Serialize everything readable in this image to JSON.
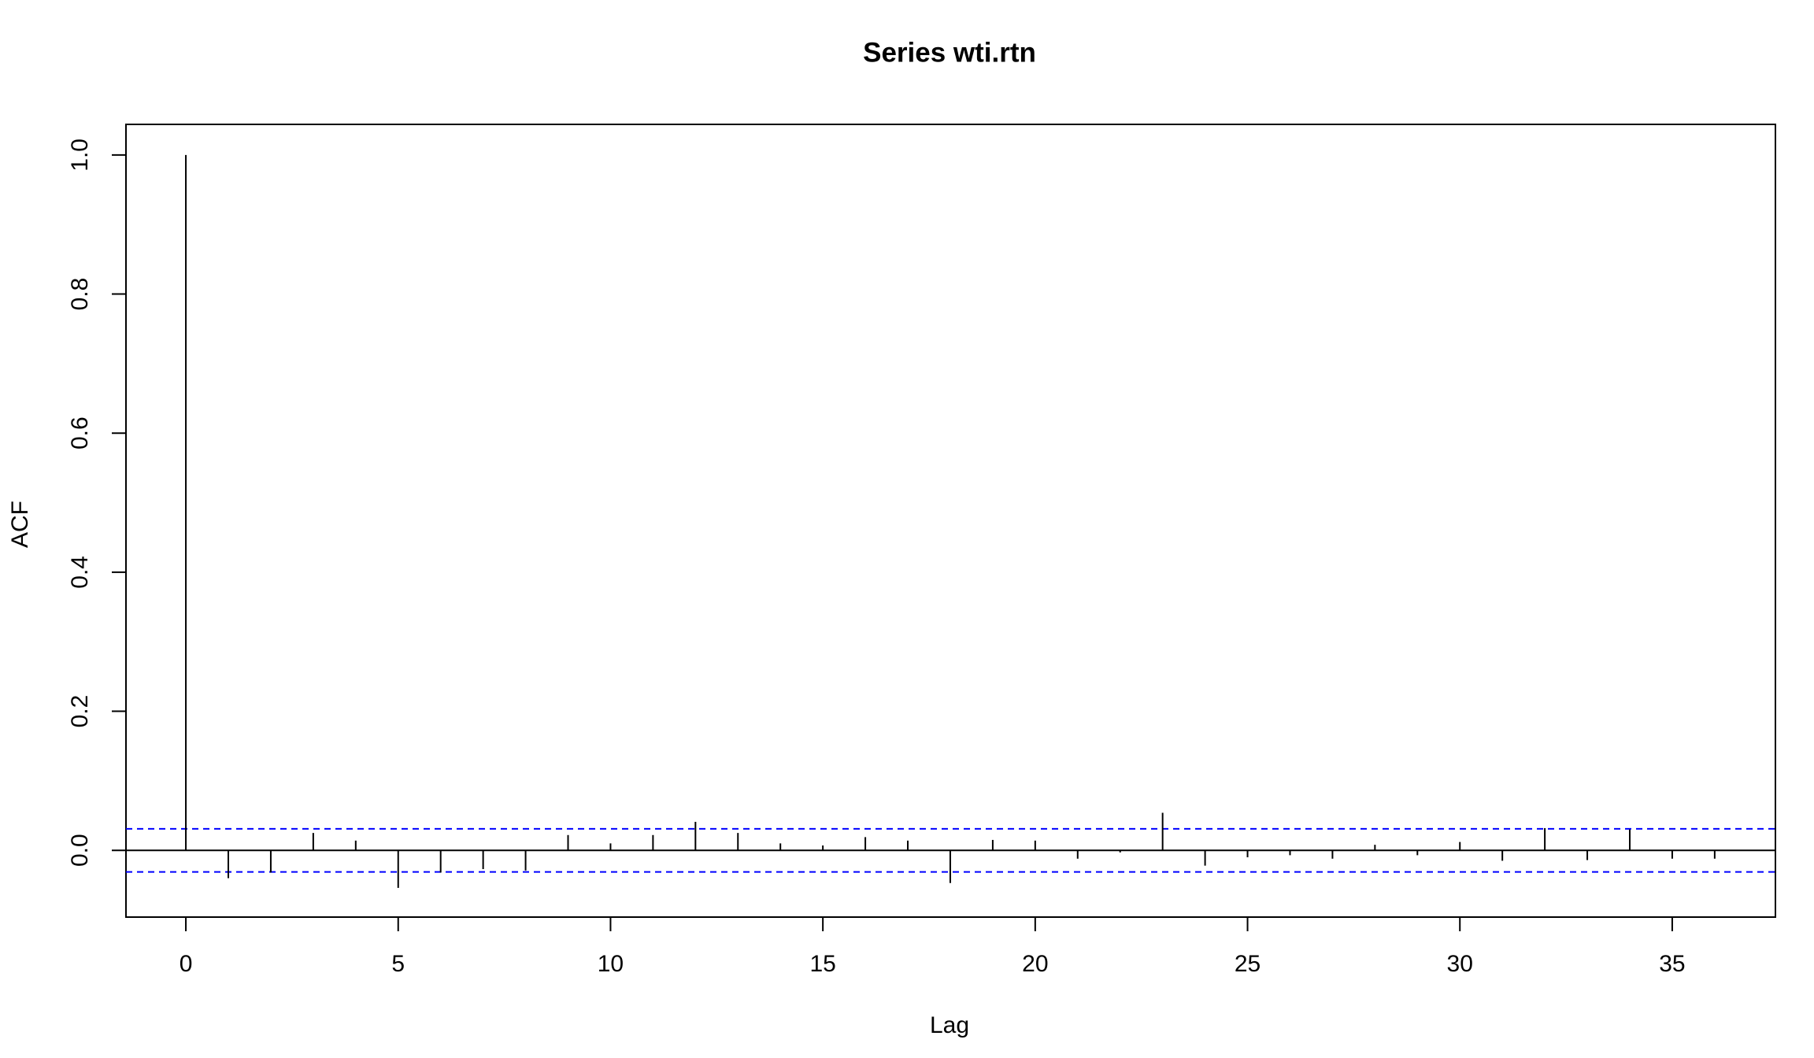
{
  "chart_data": {
    "type": "acf",
    "title": "Series  wti.rtn",
    "x_label": "Lag",
    "y_label": "ACF",
    "x": [
      0,
      1,
      2,
      3,
      4,
      5,
      6,
      7,
      8,
      9,
      10,
      11,
      12,
      13,
      14,
      15,
      16,
      17,
      18,
      19,
      20,
      21,
      22,
      23,
      24,
      25,
      26,
      27,
      28,
      29,
      30,
      31,
      32,
      33,
      34,
      35,
      36
    ],
    "values": [
      1,
      -0.04,
      -0.032,
      0.025,
      0.014,
      -0.054,
      -0.032,
      -0.027,
      -0.029,
      0.022,
      0.01,
      0.022,
      0.041,
      0.025,
      0.01,
      0.007,
      0.019,
      0.014,
      -0.047,
      0.015,
      0.014,
      -0.012,
      -0.003,
      0.054,
      -0.022,
      -0.01,
      -0.007,
      -0.012,
      0.008,
      -0.007,
      0.012,
      -0.015,
      0.032,
      -0.014,
      0.03,
      -0.012,
      -0.012
    ],
    "color": "#000000",
    "confidence_bounds": [
      -0.031,
      0.031
    ],
    "confidence_color": "#0000ff",
    "xlim": [
      -1.41,
      37.43
    ],
    "ylim": [
      -0.096,
      1.044
    ],
    "xticks": [
      0,
      5,
      10,
      15,
      20,
      25,
      30,
      35
    ],
    "yticks": [
      {
        "value": 0,
        "label": "0.0"
      },
      0.2,
      0.4,
      0.6,
      0.8,
      {
        "value": 1,
        "label": "1.0"
      }
    ]
  }
}
